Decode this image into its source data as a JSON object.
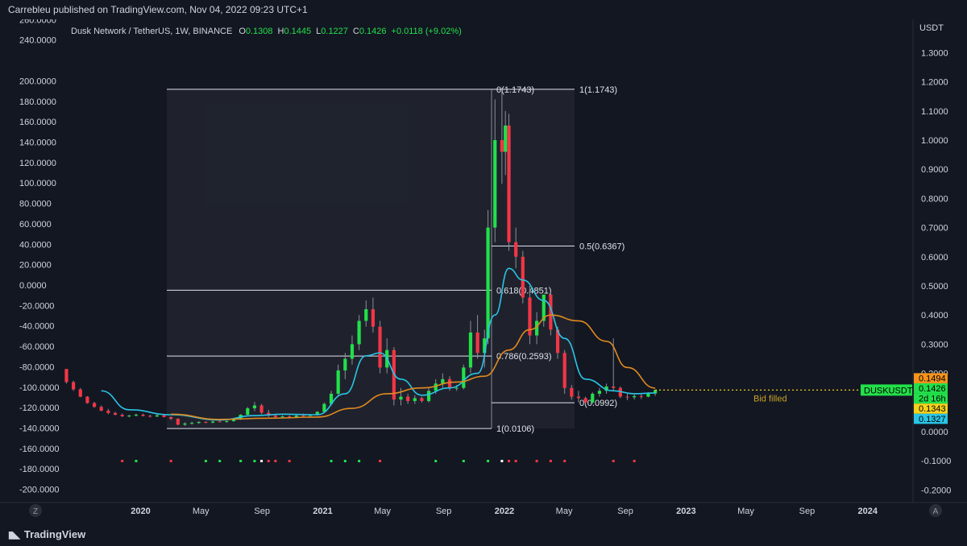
{
  "publisher_line": "Carrebleu published on TradingView.com, Nov 04, 2022 09:23 UTC+1",
  "brand": "TradingView",
  "corner_left": "Z",
  "corner_right": "A",
  "legend": {
    "symbol": "Dusk Network / TetherUS, 1W, BINANCE",
    "o_label": "O",
    "o_value": "0.1308",
    "h_label": "H",
    "h_value": "0.1445",
    "l_label": "L",
    "l_value": "0.1227",
    "c_label": "C",
    "c_value": "0.1426",
    "change": "+0.0118 (+9.02%)"
  },
  "colors": {
    "background": "#131722",
    "up": "#22e04a",
    "down": "#f23645",
    "ma_fast": "#29c5e6",
    "ma_slow": "#e08a1e",
    "fib": "#e0e3eb",
    "note": "#c9a227"
  },
  "chart_data": {
    "type": "candlestick",
    "right_axis": {
      "unit": "USDT",
      "ticks": [
        1.3,
        1.2,
        1.1,
        1.0,
        0.9,
        0.8,
        0.7,
        0.6,
        0.5,
        0.4,
        0.3,
        0.2,
        0.1,
        0.0,
        -0.1,
        -0.2
      ],
      "tick_labels": [
        "1.3000",
        "1.2000",
        "1.1000",
        "1.0000",
        "0.9000",
        "0.8000",
        "0.7000",
        "0.6000",
        "0.5000",
        "0.4000",
        "0.3000",
        "0.2000",
        "0.1000",
        "0.0000",
        "-0.1000",
        "-0.2000"
      ]
    },
    "left_axis": {
      "ticks": [
        260,
        240,
        200,
        180,
        160,
        140,
        120,
        100,
        80,
        60,
        40,
        20,
        0,
        -20,
        -40,
        -60,
        -80,
        -100,
        -120,
        -140,
        -160,
        -180,
        -200
      ],
      "tick_labels": [
        "260.0000",
        "240.0000",
        "200.0000",
        "180.0000",
        "160.0000",
        "140.0000",
        "120.0000",
        "100.0000",
        "80.0000",
        "60.0000",
        "40.0000",
        "20.0000",
        "0.0000",
        "-20.0000",
        "-40.0000",
        "-60.0000",
        "-80.0000",
        "-100.0000",
        "-120.0000",
        "-140.0000",
        "-160.0000",
        "-180.0000",
        "-200.0000"
      ]
    },
    "x_axis": {
      "labels": [
        "2020",
        "May",
        "Sep",
        "2021",
        "May",
        "Sep",
        "2022",
        "May",
        "Sep",
        "2023",
        "May",
        "Sep",
        "2024"
      ],
      "dates": [
        "2020-01-01",
        "2020-05-01",
        "2020-09-01",
        "2021-01-01",
        "2021-05-01",
        "2021-09-01",
        "2022-01-01",
        "2022-05-01",
        "2022-09-01",
        "2023-01-01",
        "2023-05-01",
        "2023-09-01",
        "2024-01-01"
      ]
    },
    "candles": [
      [
        "2019-08-05",
        0.215,
        0.215,
        0.165,
        0.17
      ],
      [
        "2019-08-19",
        0.17,
        0.175,
        0.14,
        0.145
      ],
      [
        "2019-09-02",
        0.145,
        0.15,
        0.118,
        0.12
      ],
      [
        "2019-09-16",
        0.12,
        0.122,
        0.096,
        0.098
      ],
      [
        "2019-09-30",
        0.098,
        0.102,
        0.082,
        0.085
      ],
      [
        "2019-10-14",
        0.085,
        0.09,
        0.07,
        0.072
      ],
      [
        "2019-10-28",
        0.072,
        0.078,
        0.06,
        0.064
      ],
      [
        "2019-11-11",
        0.064,
        0.068,
        0.056,
        0.058
      ],
      [
        "2019-11-25",
        0.058,
        0.062,
        0.05,
        0.053
      ],
      [
        "2019-12-09",
        0.053,
        0.058,
        0.049,
        0.055
      ],
      [
        "2019-12-23",
        0.055,
        0.062,
        0.052,
        0.058
      ],
      [
        "2020-01-06",
        0.058,
        0.062,
        0.052,
        0.054
      ],
      [
        "2020-01-20",
        0.054,
        0.058,
        0.049,
        0.052
      ],
      [
        "2020-02-03",
        0.052,
        0.06,
        0.05,
        0.056
      ],
      [
        "2020-02-17",
        0.056,
        0.058,
        0.049,
        0.05
      ],
      [
        "2020-03-02",
        0.05,
        0.052,
        0.04,
        0.044
      ],
      [
        "2020-03-16",
        0.044,
        0.046,
        0.022,
        0.024
      ],
      [
        "2020-03-30",
        0.024,
        0.032,
        0.02,
        0.028
      ],
      [
        "2020-04-13",
        0.028,
        0.034,
        0.024,
        0.03
      ],
      [
        "2020-04-27",
        0.03,
        0.036,
        0.027,
        0.033
      ],
      [
        "2020-05-11",
        0.033,
        0.036,
        0.029,
        0.031
      ],
      [
        "2020-05-25",
        0.031,
        0.038,
        0.029,
        0.035
      ],
      [
        "2020-06-08",
        0.035,
        0.04,
        0.032,
        0.034
      ],
      [
        "2020-06-22",
        0.034,
        0.038,
        0.03,
        0.036
      ],
      [
        "2020-07-06",
        0.036,
        0.045,
        0.034,
        0.042
      ],
      [
        "2020-07-20",
        0.042,
        0.06,
        0.04,
        0.058
      ],
      [
        "2020-08-03",
        0.058,
        0.085,
        0.055,
        0.08
      ],
      [
        "2020-08-17",
        0.08,
        0.102,
        0.07,
        0.09
      ],
      [
        "2020-08-31",
        0.09,
        0.095,
        0.06,
        0.065
      ],
      [
        "2020-09-14",
        0.065,
        0.075,
        0.05,
        0.055
      ],
      [
        "2020-09-28",
        0.055,
        0.06,
        0.045,
        0.05
      ],
      [
        "2020-10-12",
        0.05,
        0.056,
        0.046,
        0.052
      ],
      [
        "2020-10-26",
        0.052,
        0.056,
        0.045,
        0.048
      ],
      [
        "2020-11-09",
        0.048,
        0.058,
        0.046,
        0.055
      ],
      [
        "2020-11-23",
        0.055,
        0.062,
        0.05,
        0.054
      ],
      [
        "2020-12-07",
        0.054,
        0.06,
        0.05,
        0.058
      ],
      [
        "2020-12-21",
        0.058,
        0.07,
        0.055,
        0.068
      ],
      [
        "2021-01-04",
        0.068,
        0.1,
        0.065,
        0.095
      ],
      [
        "2021-01-18",
        0.095,
        0.14,
        0.09,
        0.13
      ],
      [
        "2021-02-01",
        0.13,
        0.23,
        0.125,
        0.21
      ],
      [
        "2021-02-15",
        0.21,
        0.27,
        0.18,
        0.25
      ],
      [
        "2021-03-01",
        0.25,
        0.33,
        0.23,
        0.3
      ],
      [
        "2021-03-15",
        0.3,
        0.4,
        0.28,
        0.38
      ],
      [
        "2021-03-29",
        0.38,
        0.45,
        0.36,
        0.42
      ],
      [
        "2021-04-12",
        0.42,
        0.46,
        0.34,
        0.36
      ],
      [
        "2021-04-26",
        0.36,
        0.38,
        0.2,
        0.22
      ],
      [
        "2021-05-10",
        0.22,
        0.32,
        0.2,
        0.28
      ],
      [
        "2021-05-24",
        0.28,
        0.29,
        0.09,
        0.11
      ],
      [
        "2021-06-07",
        0.11,
        0.15,
        0.09,
        0.12
      ],
      [
        "2021-06-21",
        0.12,
        0.13,
        0.095,
        0.105
      ],
      [
        "2021-07-05",
        0.105,
        0.125,
        0.095,
        0.115
      ],
      [
        "2021-07-19",
        0.115,
        0.12,
        0.1,
        0.105
      ],
      [
        "2021-08-02",
        0.105,
        0.15,
        0.1,
        0.14
      ],
      [
        "2021-08-16",
        0.14,
        0.18,
        0.13,
        0.165
      ],
      [
        "2021-08-30",
        0.165,
        0.2,
        0.15,
        0.18
      ],
      [
        "2021-09-13",
        0.18,
        0.19,
        0.14,
        0.15
      ],
      [
        "2021-09-27",
        0.15,
        0.16,
        0.14,
        0.15
      ],
      [
        "2021-10-11",
        0.15,
        0.23,
        0.145,
        0.22
      ],
      [
        "2021-10-25",
        0.22,
        0.38,
        0.2,
        0.34
      ],
      [
        "2021-11-08",
        0.34,
        0.4,
        0.25,
        0.27
      ],
      [
        "2021-11-22",
        0.27,
        0.35,
        0.22,
        0.32
      ],
      [
        "2021-11-29",
        0.32,
        0.76,
        0.3,
        0.7
      ],
      [
        "2021-12-13",
        0.7,
        1.14,
        0.65,
        1.0
      ],
      [
        "2021-12-27",
        1.0,
        1.18,
        0.85,
        0.96
      ],
      [
        "2022-01-03",
        0.96,
        1.1,
        0.88,
        1.05
      ],
      [
        "2022-01-10",
        1.05,
        1.09,
        0.62,
        0.65
      ],
      [
        "2022-01-24",
        0.65,
        0.7,
        0.56,
        0.6
      ],
      [
        "2022-02-07",
        0.6,
        0.62,
        0.44,
        0.46
      ],
      [
        "2022-02-21",
        0.46,
        0.5,
        0.3,
        0.33
      ],
      [
        "2022-03-07",
        0.33,
        0.41,
        0.3,
        0.38
      ],
      [
        "2022-03-21",
        0.38,
        0.47,
        0.36,
        0.47
      ],
      [
        "2022-04-04",
        0.47,
        0.48,
        0.33,
        0.35
      ],
      [
        "2022-04-18",
        0.35,
        0.36,
        0.25,
        0.27
      ],
      [
        "2022-05-02",
        0.27,
        0.28,
        0.13,
        0.15
      ],
      [
        "2022-05-16",
        0.15,
        0.16,
        0.11,
        0.12
      ],
      [
        "2022-05-30",
        0.12,
        0.14,
        0.1,
        0.115
      ],
      [
        "2022-06-13",
        0.115,
        0.12,
        0.092,
        0.1
      ],
      [
        "2022-06-27",
        0.1,
        0.135,
        0.095,
        0.13
      ],
      [
        "2022-07-11",
        0.13,
        0.15,
        0.12,
        0.14
      ],
      [
        "2022-07-25",
        0.14,
        0.165,
        0.13,
        0.155
      ],
      [
        "2022-08-08",
        0.155,
        0.32,
        0.14,
        0.15
      ],
      [
        "2022-08-22",
        0.15,
        0.155,
        0.115,
        0.12
      ],
      [
        "2022-09-05",
        0.12,
        0.13,
        0.108,
        0.118
      ],
      [
        "2022-09-19",
        0.118,
        0.128,
        0.11,
        0.122
      ],
      [
        "2022-10-03",
        0.122,
        0.13,
        0.112,
        0.12
      ],
      [
        "2022-10-17",
        0.12,
        0.135,
        0.118,
        0.13
      ],
      [
        "2022-10-31",
        0.1308,
        0.1445,
        0.1227,
        0.1426
      ]
    ],
    "moving_averages": [
      {
        "color": "#29c5e6",
        "points": [
          [
            "2019-10-14",
            0.14
          ],
          [
            "2019-12-09",
            0.075
          ],
          [
            "2020-03-02",
            0.058
          ],
          [
            "2020-06-08",
            0.04
          ],
          [
            "2020-08-17",
            0.055
          ],
          [
            "2020-10-12",
            0.06
          ],
          [
            "2020-12-21",
            0.058
          ],
          [
            "2021-02-15",
            0.13
          ],
          [
            "2021-03-29",
            0.26
          ],
          [
            "2021-04-26",
            0.27
          ],
          [
            "2021-06-07",
            0.18
          ],
          [
            "2021-07-19",
            0.125
          ],
          [
            "2021-09-13",
            0.15
          ],
          [
            "2021-11-08",
            0.2
          ],
          [
            "2021-12-13",
            0.4
          ],
          [
            "2022-01-10",
            0.56
          ],
          [
            "2022-02-07",
            0.52
          ],
          [
            "2022-03-21",
            0.45
          ],
          [
            "2022-05-02",
            0.32
          ],
          [
            "2022-06-13",
            0.18
          ],
          [
            "2022-08-08",
            0.14
          ],
          [
            "2022-09-19",
            0.13
          ],
          [
            "2022-10-31",
            0.1327
          ]
        ]
      },
      {
        "color": "#e08a1e",
        "points": [
          [
            "2020-03-02",
            0.06
          ],
          [
            "2020-06-08",
            0.042
          ],
          [
            "2020-09-14",
            0.046
          ],
          [
            "2020-12-21",
            0.05
          ],
          [
            "2021-03-01",
            0.08
          ],
          [
            "2021-05-10",
            0.13
          ],
          [
            "2021-07-19",
            0.15
          ],
          [
            "2021-09-27",
            0.17
          ],
          [
            "2021-11-22",
            0.19
          ],
          [
            "2022-01-10",
            0.28
          ],
          [
            "2022-02-21",
            0.35
          ],
          [
            "2022-04-04",
            0.4
          ],
          [
            "2022-05-30",
            0.38
          ],
          [
            "2022-07-25",
            0.31
          ],
          [
            "2022-09-05",
            0.22
          ],
          [
            "2022-10-31",
            0.1494
          ]
        ]
      }
    ],
    "fib_levels": [
      {
        "label": "0(1.1743)",
        "value": 1.1743
      },
      {
        "label": "1(1.1743)",
        "value": 1.1743
      },
      {
        "label": "0.5(0.6367)",
        "value": 0.6367
      },
      {
        "label": "0.618(0.4851)",
        "value": 0.4851
      },
      {
        "label": "0.786(0.2593)",
        "value": 0.2593
      },
      {
        "label": "1(0.0106)",
        "value": 0.0106
      },
      {
        "label": "0(0.0992)",
        "value": 0.0992
      }
    ],
    "annotation": "Bid filled",
    "price_tags": [
      {
        "label": "0.1494",
        "value": 0.1494,
        "bg": "#f7931a",
        "fg": "#000000"
      },
      {
        "label": "0.1426",
        "value": 0.1426,
        "bg": "#22e04a",
        "fg": "#000000"
      },
      {
        "label": "2d 16h",
        "value": null,
        "bg": "#22e04a",
        "fg": "#000000"
      },
      {
        "label": "0.1343",
        "value": 0.1343,
        "bg": "#f7d21a",
        "fg": "#000000"
      },
      {
        "label": "0.1327",
        "value": 0.1327,
        "bg": "#29c5e6",
        "fg": "#000000"
      }
    ],
    "symbol_tag": "DUSKUSDT",
    "last_price": 0.1426
  }
}
